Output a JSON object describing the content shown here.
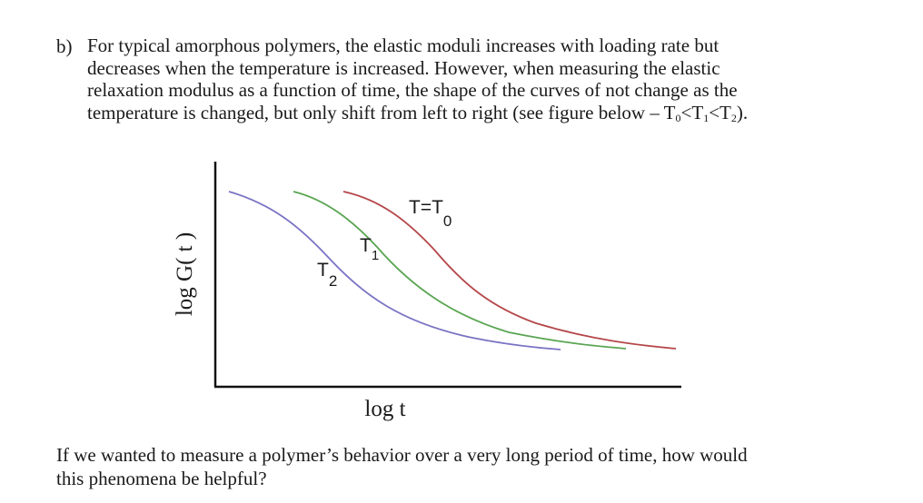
{
  "problem": {
    "part_label": "b)",
    "intro_lines": [
      "For typical amorphous polymers, the elastic moduli increases with loading rate but",
      "decreases when the temperature is increased. However, when measuring the elastic",
      "relaxation modulus as a function of time, the shape of the curves of not change as the"
    ],
    "intro_last_prefix": "temperature is changed, but only shift from left to right (see figure below – T",
    "intro_sub_0": "0",
    "intro_lt_1": "<T",
    "intro_sub_1": "1",
    "intro_lt_2": "<T",
    "intro_sub_2": "2",
    "intro_end": ").",
    "question_lines": [
      "If we wanted to measure a polymer’s behavior over a very long period of time, how would",
      "this phenomena be helpful?"
    ]
  },
  "chart_data": {
    "type": "line",
    "title": "",
    "xlabel": "log t",
    "ylabel": "log G( t )",
    "grid": false,
    "series": [
      {
        "name": "T=T0",
        "label_main": "T=T",
        "label_sub": "0",
        "color": "#b5474a"
      },
      {
        "name": "T1",
        "label_main": "T",
        "label_sub": "1",
        "color": "#5aa552"
      },
      {
        "name": "T2",
        "label_main": "T",
        "label_sub": "2",
        "color": "#7a74c4"
      }
    ]
  }
}
